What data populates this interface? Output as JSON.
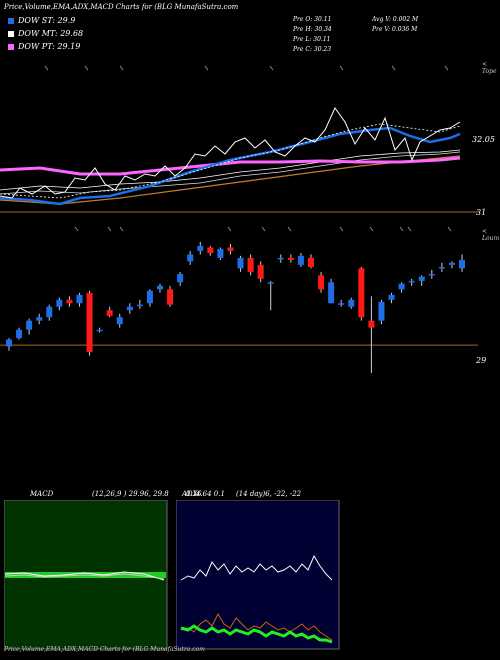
{
  "header": {
    "title": "Price,Volume,EMA,ADX,MACD Charts for (BLG MunafaSutra.com"
  },
  "legend": [
    {
      "label": "DOW ST: 29.9",
      "color": "#1e6ee8"
    },
    {
      "label": "DOW MT: 29.68",
      "color": "#ffffff"
    },
    {
      "label": "DOW PT: 29.19",
      "color": "#ff66ff"
    }
  ],
  "stats": {
    "prev_open": "Pre  O: 30.11",
    "prev_high": "Pre  H: 30.34",
    "prev_low": "Pre  L: 30.11",
    "prev_close": "Pre  C: 30.23",
    "avg_volume": "Avg V: 0.002  M",
    "prev_volume": "Pre  V: 0.036  M"
  },
  "labels": {
    "top_price_right": "32.05",
    "top_price_bottom": "31",
    "candle_price": "29",
    "top_corner": "< Tope",
    "mid_corner": "< Loum",
    "footer": "Price,Volume,EMA,ADX,MACD Charts for (BLG MunafaSutra.com"
  },
  "macd_panel": {
    "title": "MACD",
    "params": "(12,26,9 ) 29.96,  29.8",
    "extra": "0.16"
  },
  "adx_panel": {
    "title": "ADX",
    "params": "(14  day)6,  -22,  -22",
    "extra": "4.64  0.1"
  },
  "chart_data": {
    "type": "candlestick",
    "candles": [
      {
        "o": 29.18,
        "h": 29.3,
        "l": 29.12,
        "c": 29.28
      },
      {
        "o": 29.3,
        "h": 29.45,
        "l": 29.28,
        "c": 29.42
      },
      {
        "o": 29.42,
        "h": 29.58,
        "l": 29.35,
        "c": 29.55
      },
      {
        "o": 29.55,
        "h": 29.65,
        "l": 29.5,
        "c": 29.6
      },
      {
        "o": 29.6,
        "h": 29.78,
        "l": 29.55,
        "c": 29.75
      },
      {
        "o": 29.75,
        "h": 29.88,
        "l": 29.7,
        "c": 29.85
      },
      {
        "o": 29.85,
        "h": 29.9,
        "l": 29.75,
        "c": 29.8
      },
      {
        "o": 29.8,
        "h": 29.95,
        "l": 29.75,
        "c": 29.92
      },
      {
        "o": 29.95,
        "h": 29.98,
        "l": 29.05,
        "c": 29.1
      },
      {
        "o": 29.4,
        "h": 29.45,
        "l": 29.38,
        "c": 29.42
      },
      {
        "o": 29.7,
        "h": 29.75,
        "l": 29.6,
        "c": 29.62
      },
      {
        "o": 29.5,
        "h": 29.65,
        "l": 29.45,
        "c": 29.6
      },
      {
        "o": 29.7,
        "h": 29.8,
        "l": 29.65,
        "c": 29.75
      },
      {
        "o": 29.78,
        "h": 29.85,
        "l": 29.72,
        "c": 29.78
      },
      {
        "o": 29.8,
        "h": 30.0,
        "l": 29.75,
        "c": 29.98
      },
      {
        "o": 30.0,
        "h": 30.08,
        "l": 29.95,
        "c": 30.05
      },
      {
        "o": 30.0,
        "h": 30.05,
        "l": 29.75,
        "c": 29.78
      },
      {
        "o": 30.1,
        "h": 30.25,
        "l": 30.05,
        "c": 30.22
      },
      {
        "o": 30.4,
        "h": 30.55,
        "l": 30.35,
        "c": 30.5
      },
      {
        "o": 30.55,
        "h": 30.68,
        "l": 30.5,
        "c": 30.62
      },
      {
        "o": 30.6,
        "h": 30.62,
        "l": 30.48,
        "c": 30.52
      },
      {
        "o": 30.45,
        "h": 30.6,
        "l": 30.42,
        "c": 30.58
      },
      {
        "o": 30.6,
        "h": 30.65,
        "l": 30.5,
        "c": 30.55
      },
      {
        "o": 30.3,
        "h": 30.48,
        "l": 30.25,
        "c": 30.45
      },
      {
        "o": 30.45,
        "h": 30.5,
        "l": 30.2,
        "c": 30.25
      },
      {
        "o": 30.35,
        "h": 30.4,
        "l": 30.1,
        "c": 30.15
      },
      {
        "o": 30.08,
        "h": 30.12,
        "l": 29.7,
        "c": 30.1
      },
      {
        "o": 30.45,
        "h": 30.5,
        "l": 30.38,
        "c": 30.45
      },
      {
        "o": 30.45,
        "h": 30.5,
        "l": 30.38,
        "c": 30.42
      },
      {
        "o": 30.35,
        "h": 30.52,
        "l": 30.32,
        "c": 30.48
      },
      {
        "o": 30.45,
        "h": 30.5,
        "l": 30.3,
        "c": 30.32
      },
      {
        "o": 30.2,
        "h": 30.25,
        "l": 29.95,
        "c": 30.0
      },
      {
        "o": 29.8,
        "h": 30.15,
        "l": 29.8,
        "c": 30.1
      },
      {
        "o": 29.8,
        "h": 29.85,
        "l": 29.75,
        "c": 29.8
      },
      {
        "o": 29.75,
        "h": 29.88,
        "l": 29.72,
        "c": 29.85
      },
      {
        "o": 30.3,
        "h": 30.32,
        "l": 29.55,
        "c": 29.6
      },
      {
        "o": 29.55,
        "h": 29.9,
        "l": 28.8,
        "c": 29.45
      },
      {
        "o": 29.55,
        "h": 29.85,
        "l": 29.5,
        "c": 29.82
      },
      {
        "o": 29.85,
        "h": 29.95,
        "l": 29.8,
        "c": 29.92
      },
      {
        "o": 30.0,
        "h": 30.1,
        "l": 29.95,
        "c": 30.08
      },
      {
        "o": 30.1,
        "h": 30.15,
        "l": 30.05,
        "c": 30.12
      },
      {
        "o": 30.12,
        "h": 30.2,
        "l": 30.05,
        "c": 30.18
      },
      {
        "o": 30.2,
        "h": 30.28,
        "l": 30.15,
        "c": 30.22
      },
      {
        "o": 30.3,
        "h": 30.38,
        "l": 30.25,
        "c": 30.32
      },
      {
        "o": 30.35,
        "h": 30.4,
        "l": 30.3,
        "c": 30.38
      },
      {
        "o": 30.3,
        "h": 30.5,
        "l": 30.25,
        "c": 30.42
      }
    ],
    "ylim": [
      28.7,
      30.85
    ],
    "reference_line": 29.2,
    "colors": {
      "up": "#1e6ee8",
      "down": "#ff1a1a"
    }
  }
}
